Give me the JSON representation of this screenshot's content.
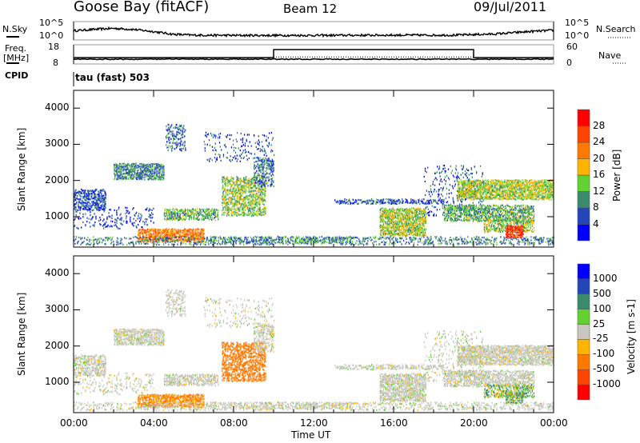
{
  "header": {
    "station": "Goose Bay (fitACF)",
    "beam": "Beam 12",
    "date": "09/Jul/2011"
  },
  "nsky_panel": {
    "left_label": "N.Sky",
    "right_label": "N.Search",
    "left_ticks": [
      "10^5",
      "10^0"
    ],
    "right_ticks": [
      "10^5",
      "10^0"
    ]
  },
  "freq_panel": {
    "left_label_1": "Freq.",
    "left_label_2": "[MHz]",
    "right_label": "Nave",
    "left_ticks": [
      "18",
      "8"
    ],
    "right_ticks": [
      "60",
      "0"
    ]
  },
  "cpid": {
    "label": "CPID",
    "value": "tau (fast) 503"
  },
  "colors": {
    "power": [
      "#0000ff",
      "#2345b8",
      "#3a8a6e",
      "#63d132",
      "#ffb400",
      "#ff7800",
      "#ff4500",
      "#ff0000"
    ],
    "velocity": [
      "#0000ff",
      "#2345b8",
      "#3a8a6e",
      "#63d132",
      "#c8c8c0",
      "#ffb400",
      "#ff7800",
      "#ff4500",
      "#ff0000"
    ]
  },
  "chart_data": [
    {
      "type": "heatmap",
      "name": "power",
      "xlabel": "Time UT",
      "ylabel": "Slant Range [km]",
      "xlim": [
        0,
        24
      ],
      "ylim": [
        160,
        4490
      ],
      "x_ticks": [
        "00:00",
        "04:00",
        "08:00",
        "12:00",
        "16:00",
        "20:00",
        "00:00"
      ],
      "y_ticks": [
        "1000",
        "2000",
        "3000",
        "4000"
      ],
      "colorbar": {
        "label": "Power [dB]",
        "ticks": [
          "28",
          "24",
          "20",
          "16",
          "12",
          "8",
          "4"
        ],
        "range": [
          0,
          32
        ]
      }
    },
    {
      "type": "heatmap",
      "name": "velocity",
      "xlabel": "Time UT",
      "ylabel": "Slant Range [km]",
      "xlim": [
        0,
        24
      ],
      "ylim": [
        160,
        4490
      ],
      "x_ticks": [
        "00:00",
        "04:00",
        "08:00",
        "12:00",
        "16:00",
        "20:00",
        "00:00"
      ],
      "y_ticks": [
        "1000",
        "2000",
        "3000",
        "4000"
      ],
      "colorbar": {
        "label": "Velocity [m s-1]",
        "ticks": [
          "1000",
          "500",
          "100",
          "25",
          "-25",
          "-100",
          "-500",
          "-1000"
        ]
      }
    }
  ],
  "echo_regions": [
    {
      "t": [
        0,
        1.6
      ],
      "r": [
        1150,
        1750
      ],
      "power": 6,
      "vel": 0,
      "density": 0.6
    },
    {
      "t": [
        2.0,
        4.5
      ],
      "r": [
        2000,
        2450
      ],
      "power": 9,
      "vel": 0,
      "density": 0.7
    },
    {
      "t": [
        0,
        4
      ],
      "r": [
        650,
        1250
      ],
      "power": 5,
      "vel": 0,
      "density": 0.15
    },
    {
      "t": [
        3.2,
        6.5
      ],
      "r": [
        280,
        620
      ],
      "power": 22,
      "vel": -150,
      "density": 0.8
    },
    {
      "t": [
        6.5,
        14
      ],
      "r": [
        250,
        420
      ],
      "power": 10,
      "vel": 0,
      "density": 0.35
    },
    {
      "t": [
        4.5,
        7.2
      ],
      "r": [
        880,
        1200
      ],
      "power": 12,
      "vel": 0,
      "density": 0.6
    },
    {
      "t": [
        7.4,
        9.6
      ],
      "r": [
        1000,
        2100
      ],
      "power": 14,
      "vel": -300,
      "density": 0.55
    },
    {
      "t": [
        9.0,
        10.0
      ],
      "r": [
        1800,
        2600
      ],
      "power": 8,
      "vel": 0,
      "density": 0.45
    },
    {
      "t": [
        4.6,
        5.6
      ],
      "r": [
        2800,
        3500
      ],
      "power": 8,
      "vel": 0,
      "density": 0.35
    },
    {
      "t": [
        6.5,
        10
      ],
      "r": [
        2500,
        3300
      ],
      "power": 6,
      "vel": 0,
      "density": 0.1
    },
    {
      "t": [
        0,
        24
      ],
      "r": [
        200,
        420
      ],
      "power": 9,
      "vel": 0,
      "density": 0.3
    },
    {
      "t": [
        13,
        18.5
      ],
      "r": [
        1330,
        1480
      ],
      "power": 7,
      "vel": 0,
      "density": 0.5
    },
    {
      "t": [
        15.3,
        17.6
      ],
      "r": [
        450,
        1200
      ],
      "power": 15,
      "vel": 0,
      "density": 0.75
    },
    {
      "t": [
        17.5,
        20.5
      ],
      "r": [
        1000,
        2400
      ],
      "power": 7,
      "vel": 0,
      "density": 0.12
    },
    {
      "t": [
        19.2,
        24
      ],
      "r": [
        1450,
        2000
      ],
      "power": 15,
      "vel": 0,
      "density": 0.75
    },
    {
      "t": [
        18.5,
        23
      ],
      "r": [
        850,
        1300
      ],
      "power": 12,
      "vel": 0,
      "density": 0.65
    },
    {
      "t": [
        20.5,
        23.0
      ],
      "r": [
        550,
        900
      ],
      "power": 14,
      "vel": 60,
      "density": 0.55
    },
    {
      "t": [
        21.6,
        22.5
      ],
      "r": [
        400,
        700
      ],
      "power": 27,
      "vel": 60,
      "density": 0.85
    }
  ],
  "nsky_series": {
    "t": [
      0,
      1,
      2,
      3,
      4,
      5,
      6,
      8,
      12,
      16,
      19,
      21,
      22,
      23,
      24
    ],
    "log10": [
      2.5,
      3.0,
      3.4,
      3.0,
      2.2,
      1.2,
      0.9,
      0.8,
      0.8,
      0.9,
      0.9,
      1.3,
      1.8,
      2.3,
      2.7
    ]
  },
  "freq_series": {
    "t": [
      0,
      24
    ],
    "mhz": [
      10.5,
      10.5
    ]
  },
  "nave_series": {
    "t": [
      0,
      10,
      10,
      20,
      20,
      24
    ],
    "nave": [
      20,
      20,
      45,
      45,
      20,
      20
    ]
  }
}
